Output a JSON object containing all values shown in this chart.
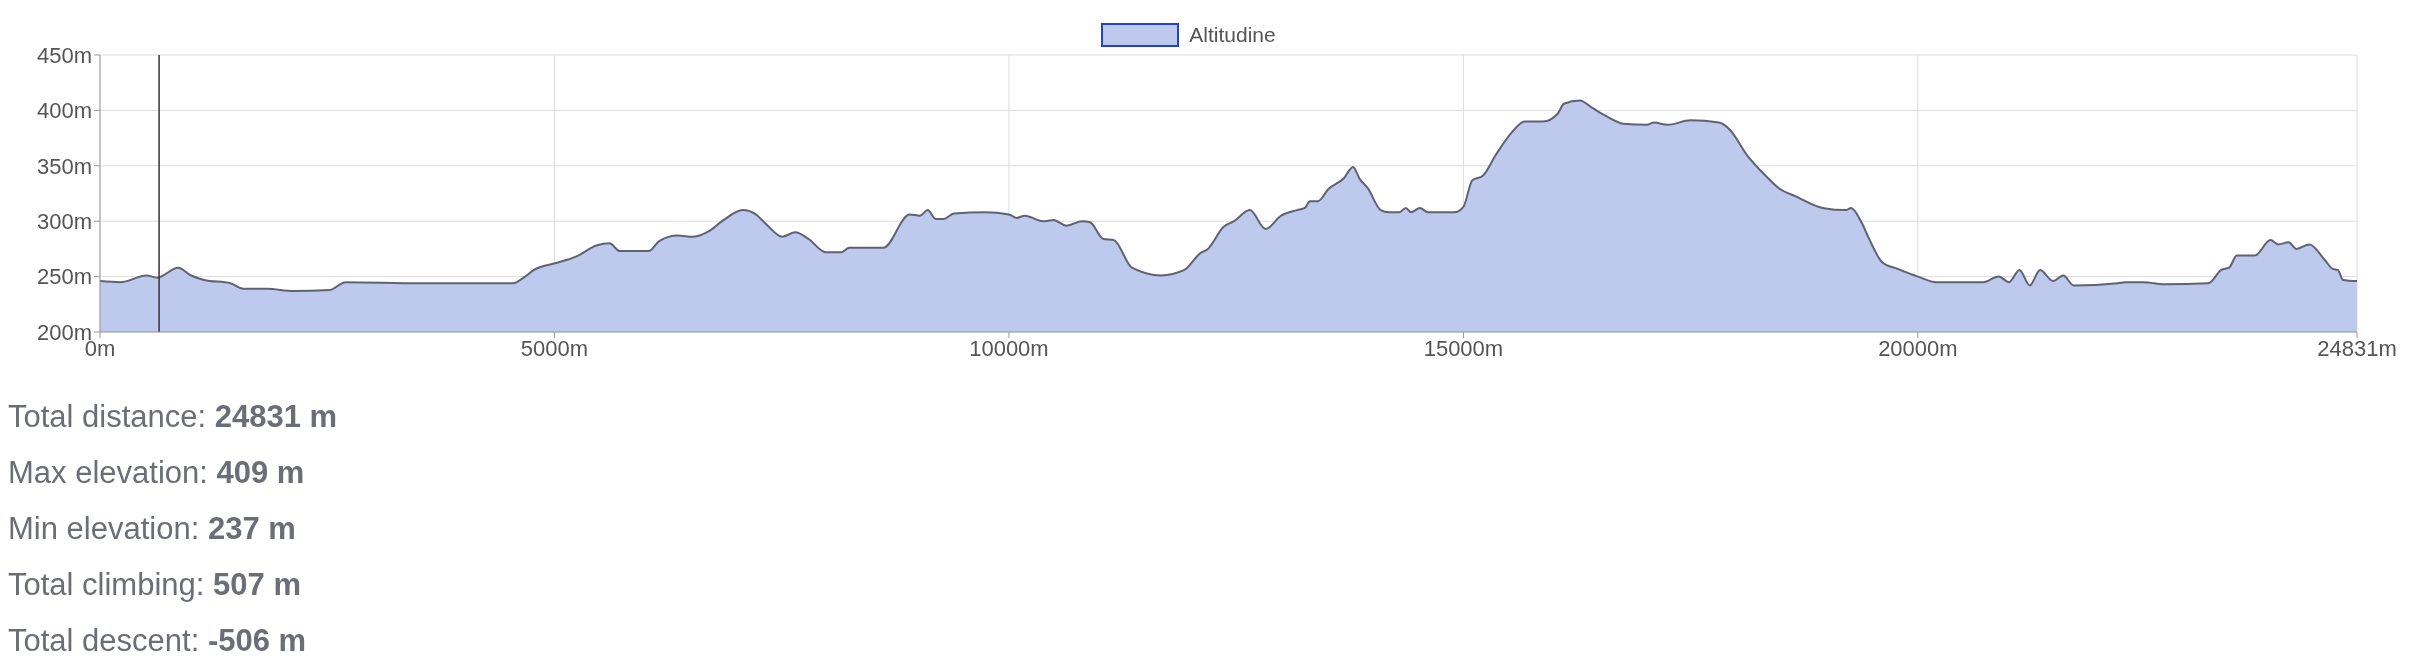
{
  "chart_data": {
    "type": "area",
    "x": [
      0,
      225,
      513,
      628,
      858,
      1002,
      1146,
      1434,
      1578,
      1838,
      2126,
      2529,
      2702,
      3508,
      4545,
      4660,
      4775,
      5006,
      5236,
      5461,
      5605,
      5720,
      6037,
      6152,
      6354,
      6527,
      6700,
      6844,
      7074,
      7218,
      7333,
      7506,
      7650,
      7794,
      7984,
      8157,
      8243,
      8618,
      8906,
      9021,
      9107,
      9194,
      9280,
      9395,
      9741,
      10000,
      10086,
      10173,
      10374,
      10490,
      10634,
      10806,
      10893,
      11037,
      11152,
      11354,
      11671,
      11930,
      12103,
      12189,
      12362,
      12477,
      12650,
      12823,
      12995,
      13168,
      13255,
      13312,
      13398,
      13514,
      13687,
      13785,
      13860,
      13946,
      14090,
      14177,
      14292,
      14367,
      14424,
      14522,
      14608,
      14896,
      15000,
      15098,
      15213,
      15357,
      15530,
      15674,
      15876,
      16037,
      16106,
      16279,
      16423,
      16567,
      16758,
      17015,
      17100,
      17243,
      17499,
      17812,
      17926,
      18126,
      18325,
      18467,
      18667,
      18952,
      19208,
      19265,
      19379,
      19464,
      19607,
      19778,
      20000,
      20205,
      20718,
      20889,
      21003,
      21117,
      21231,
      21344,
      21487,
      21600,
      21714,
      22198,
      22284,
      22483,
      22711,
      23196,
      23338,
      23423,
      23509,
      23594,
      23708,
      23879,
      23965,
      24079,
      24164,
      24307,
      24477,
      24563,
      24620,
      24677,
      24831
    ],
    "series": [
      {
        "name": "Altitudine",
        "color": "#bdc9ed",
        "values": [
          246,
          245,
          251,
          249,
          258,
          251,
          247,
          244,
          239,
          239,
          237,
          238,
          245,
          244,
          244,
          249,
          256,
          262,
          268,
          278,
          280,
          273,
          273,
          282,
          287,
          286,
          291,
          300,
          310,
          306,
          297,
          286,
          290,
          284,
          272,
          272,
          276,
          276,
          306,
          305,
          310,
          302,
          302,
          307,
          308,
          306,
          303,
          305,
          300,
          301,
          296,
          300,
          299,
          284,
          283,
          258,
          251,
          256,
          271,
          275,
          295,
          300,
          310,
          293,
          305,
          310,
          312,
          318,
          318,
          329,
          339,
          349,
          338,
          330,
          310,
          308,
          308,
          312,
          308,
          312,
          308,
          308,
          313,
          337,
          341,
          360,
          380,
          390,
          390,
          397,
          406,
          409,
          402,
          395,
          388,
          387,
          389,
          387,
          391,
          389,
          383,
          359,
          341,
          330,
          322,
          312,
          310,
          312,
          299,
          284,
          263,
          257,
          250,
          245,
          245,
          250,
          245,
          256,
          242,
          256,
          246,
          251,
          242,
          244,
          245,
          245,
          243,
          244,
          256,
          258,
          269,
          269,
          269,
          283,
          279,
          281,
          275,
          279,
          265,
          257,
          256,
          247,
          246
        ]
      }
    ],
    "xlim": [
      0,
      24831
    ],
    "xticks": [
      {
        "value": 0,
        "label": "0m"
      },
      {
        "value": 5000,
        "label": "5000m"
      },
      {
        "value": 10000,
        "label": "10000m"
      },
      {
        "value": 15000,
        "label": "15000m"
      },
      {
        "value": 20000,
        "label": "20000m"
      },
      {
        "value": 24831,
        "label": "24831m"
      }
    ],
    "ylim": [
      200,
      450
    ],
    "yticks": [
      {
        "value": 200,
        "label": "200m"
      },
      {
        "value": 250,
        "label": "250m"
      },
      {
        "value": 300,
        "label": "300m"
      },
      {
        "value": 350,
        "label": "350m"
      },
      {
        "value": 400,
        "label": "400m"
      },
      {
        "value": 450,
        "label": "450m"
      }
    ],
    "grid": true,
    "legend": "top",
    "ref_lines": [
      {
        "axis": "x",
        "value": 650,
        "color": "#333333"
      }
    ],
    "annotations": [
      "Total distance: 24831 m",
      "Max elevation: 409 m",
      "Min elevation: 237 m",
      "Total climbing: 507 m",
      "Total descent: -506 m"
    ]
  }
}
